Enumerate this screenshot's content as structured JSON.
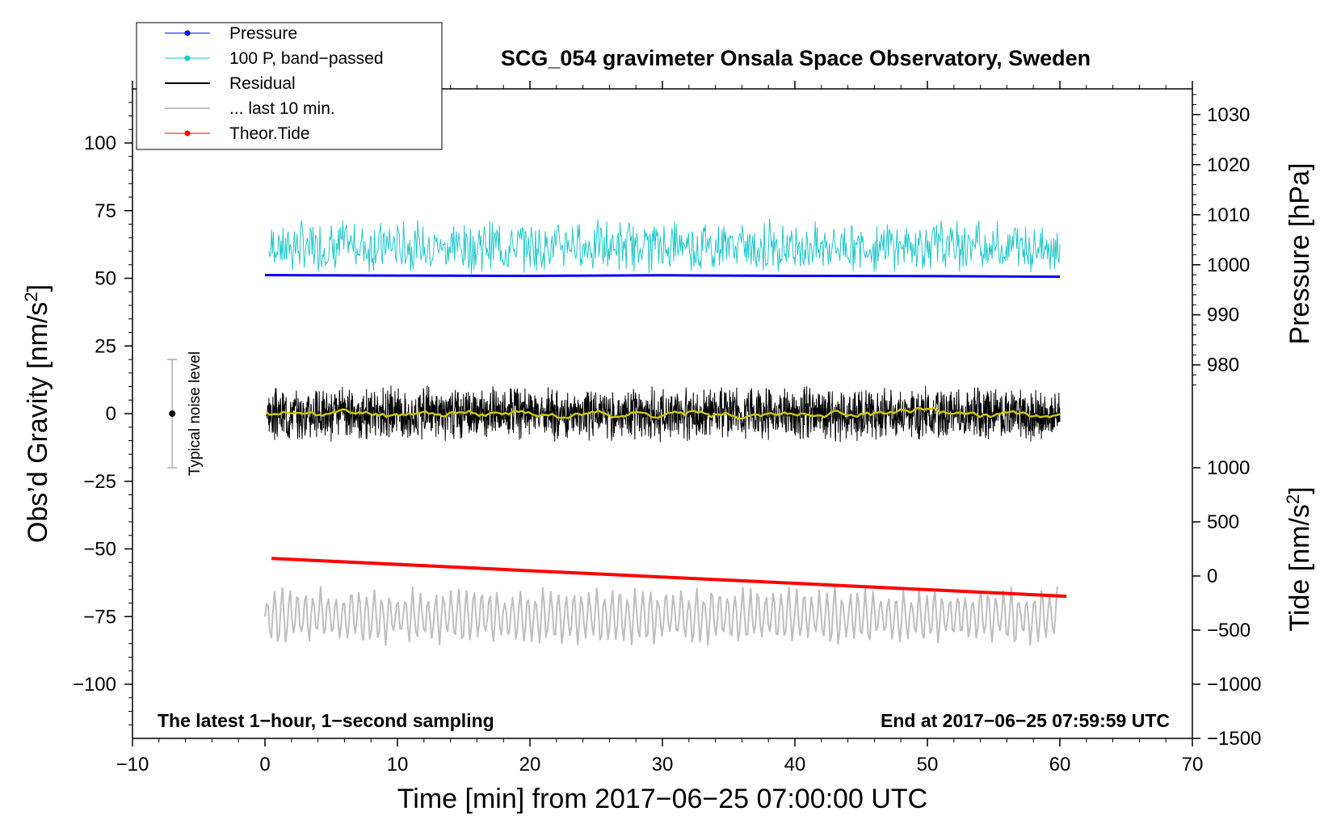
{
  "chart_data": {
    "type": "line",
    "title": "SCG_054 gravimeter Onsala Space Observatory, Sweden",
    "xlabel": "Time [min] from 2017−06−25 07:00:00 UTC",
    "ylabel_left": "Obs’d Gravity [nm/s",
    "ylabel_left_sup": "2",
    "ylabel_left_close": "]",
    "ylabel_pressure": "Pressure [hPa]",
    "ylabel_tide": "Tide [nm/s",
    "ylabel_tide_sup": "2",
    "ylabel_tide_close": "]",
    "note_left": "The latest 1−hour, 1−second sampling",
    "note_right": "End at 2017−06−25 07:59:59 UTC",
    "noise_label": "Typical noise level",
    "xlim": [
      -10,
      70
    ],
    "ylim": [
      -120,
      120
    ],
    "x_ticks": [
      -10,
      0,
      10,
      20,
      30,
      40,
      50,
      60,
      70
    ],
    "x_tick_labels": [
      "−10",
      "0",
      "10",
      "20",
      "30",
      "40",
      "50",
      "60",
      "70"
    ],
    "y_ticks": [
      100,
      75,
      50,
      25,
      0,
      -25,
      -50,
      -75,
      -100
    ],
    "y_tick_labels": [
      "100",
      "75",
      "50",
      "25",
      "0",
      "−25",
      "−50",
      "−75",
      "−100"
    ],
    "pressure_ticks": [
      1030,
      1020,
      1010,
      1000,
      990,
      980
    ],
    "pressure_tick_labels": [
      "1030",
      "1020",
      "1010",
      "1000",
      "990",
      "980"
    ],
    "pressure_map": {
      "value_a": 1030,
      "grav_a": 110.5,
      "value_b": 980,
      "grav_b": 18
    },
    "tide_ticks": [
      1000,
      500,
      0,
      -500,
      -1000,
      -1500
    ],
    "tide_tick_labels": [
      "1000",
      "500",
      "0",
      "−500",
      "−1000",
      "−1500"
    ],
    "tide_map": {
      "value_a": 1000,
      "grav_a": -20,
      "value_b": -1500,
      "grav_b": -120
    },
    "noise_bar": {
      "x": -7,
      "low": -20,
      "high": 20,
      "center": 0
    },
    "legend": [
      {
        "label": "Pressure",
        "color": "#0000ff",
        "marker": true,
        "width": 1
      },
      {
        "label": "100 P, band−passed",
        "color": "#20c8c8",
        "marker": true,
        "width": 1
      },
      {
        "label": "Residual",
        "color": "#000000",
        "marker": false,
        "width": 2
      },
      {
        "label": "... last 10 min.",
        "color": "#bebebe",
        "marker": false,
        "width": 2
      },
      {
        "label": "Theor.Tide",
        "color": "#ff0000",
        "marker": true,
        "width": 1
      }
    ],
    "series": [
      {
        "name": "Pressure",
        "color": "#0000ff",
        "width": 3,
        "x": [
          0,
          10,
          20,
          30,
          40,
          50,
          60
        ],
        "y": [
          51.2,
          51.0,
          50.9,
          51.1,
          50.9,
          50.8,
          50.6
        ]
      },
      {
        "name": "100 P, band−passed",
        "color": "#20c8c8",
        "width": 1,
        "center": 62,
        "noise_amp": 7,
        "x_start": 0.3,
        "x_end": 60,
        "points": 900,
        "seed": 7
      },
      {
        "name": "Residual",
        "color": "#000000",
        "width": 1,
        "center": 0,
        "noise_amp": 7,
        "x_start": 0.1,
        "x_end": 60,
        "points": 2400,
        "seed": 3
      },
      {
        "name": "Residual smoothed",
        "color": "#c8c800",
        "width": 2.5,
        "center": 0,
        "noise_amp": 1.3,
        "x_start": 0.1,
        "x_end": 60,
        "points": 240,
        "seed": 11
      },
      {
        "name": "... last 10 min.",
        "color": "#bebebe",
        "width": 2,
        "center": -75,
        "noise_amp": 8,
        "x_start": 0,
        "x_end": 59.8,
        "points": 500,
        "seed": 5
      },
      {
        "name": "Theor.Tide",
        "color": "#ff0000",
        "width": 4,
        "x": [
          0.5,
          60.5
        ],
        "y": [
          -53.5,
          -67.5
        ]
      }
    ]
  }
}
